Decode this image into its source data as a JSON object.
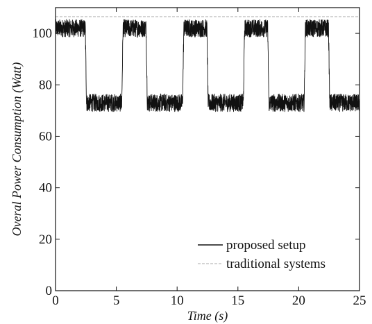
{
  "chart_data": {
    "type": "line",
    "xlabel": "Time (s)",
    "ylabel": "Overal Power Consumption (Watt)",
    "xlim": [
      0,
      25
    ],
    "ylim": [
      0,
      110
    ],
    "xticks": [
      0,
      5,
      10,
      15,
      20,
      25
    ],
    "yticks": [
      0,
      20,
      40,
      60,
      80,
      100
    ],
    "x_tick_labels": [
      "0",
      "5",
      "10",
      "15",
      "20",
      "25"
    ],
    "y_tick_labels": [
      "0",
      "20",
      "40",
      "60",
      "80",
      "100"
    ],
    "grid": false,
    "legend_position": "bottom-right",
    "series": [
      {
        "name": "proposed setup",
        "color": "#111111",
        "style": "solid",
        "noise_band": 3.5,
        "x": [
          0,
          2.45,
          2.55,
          5.45,
          5.55,
          7.45,
          7.55,
          10.45,
          10.55,
          12.45,
          12.55,
          15.45,
          15.55,
          17.45,
          17.55,
          20.45,
          20.55,
          22.45,
          22.55,
          25
        ],
        "y": [
          102,
          102,
          73,
          73,
          102,
          102,
          73,
          73,
          102,
          102,
          73,
          73,
          102,
          102,
          73,
          73,
          102,
          102,
          73,
          73
        ]
      },
      {
        "name": "traditional systems",
        "color": "#aaaaaa",
        "style": "dashed",
        "x": [
          0,
          25
        ],
        "y": [
          106.5,
          106.5
        ]
      }
    ]
  }
}
